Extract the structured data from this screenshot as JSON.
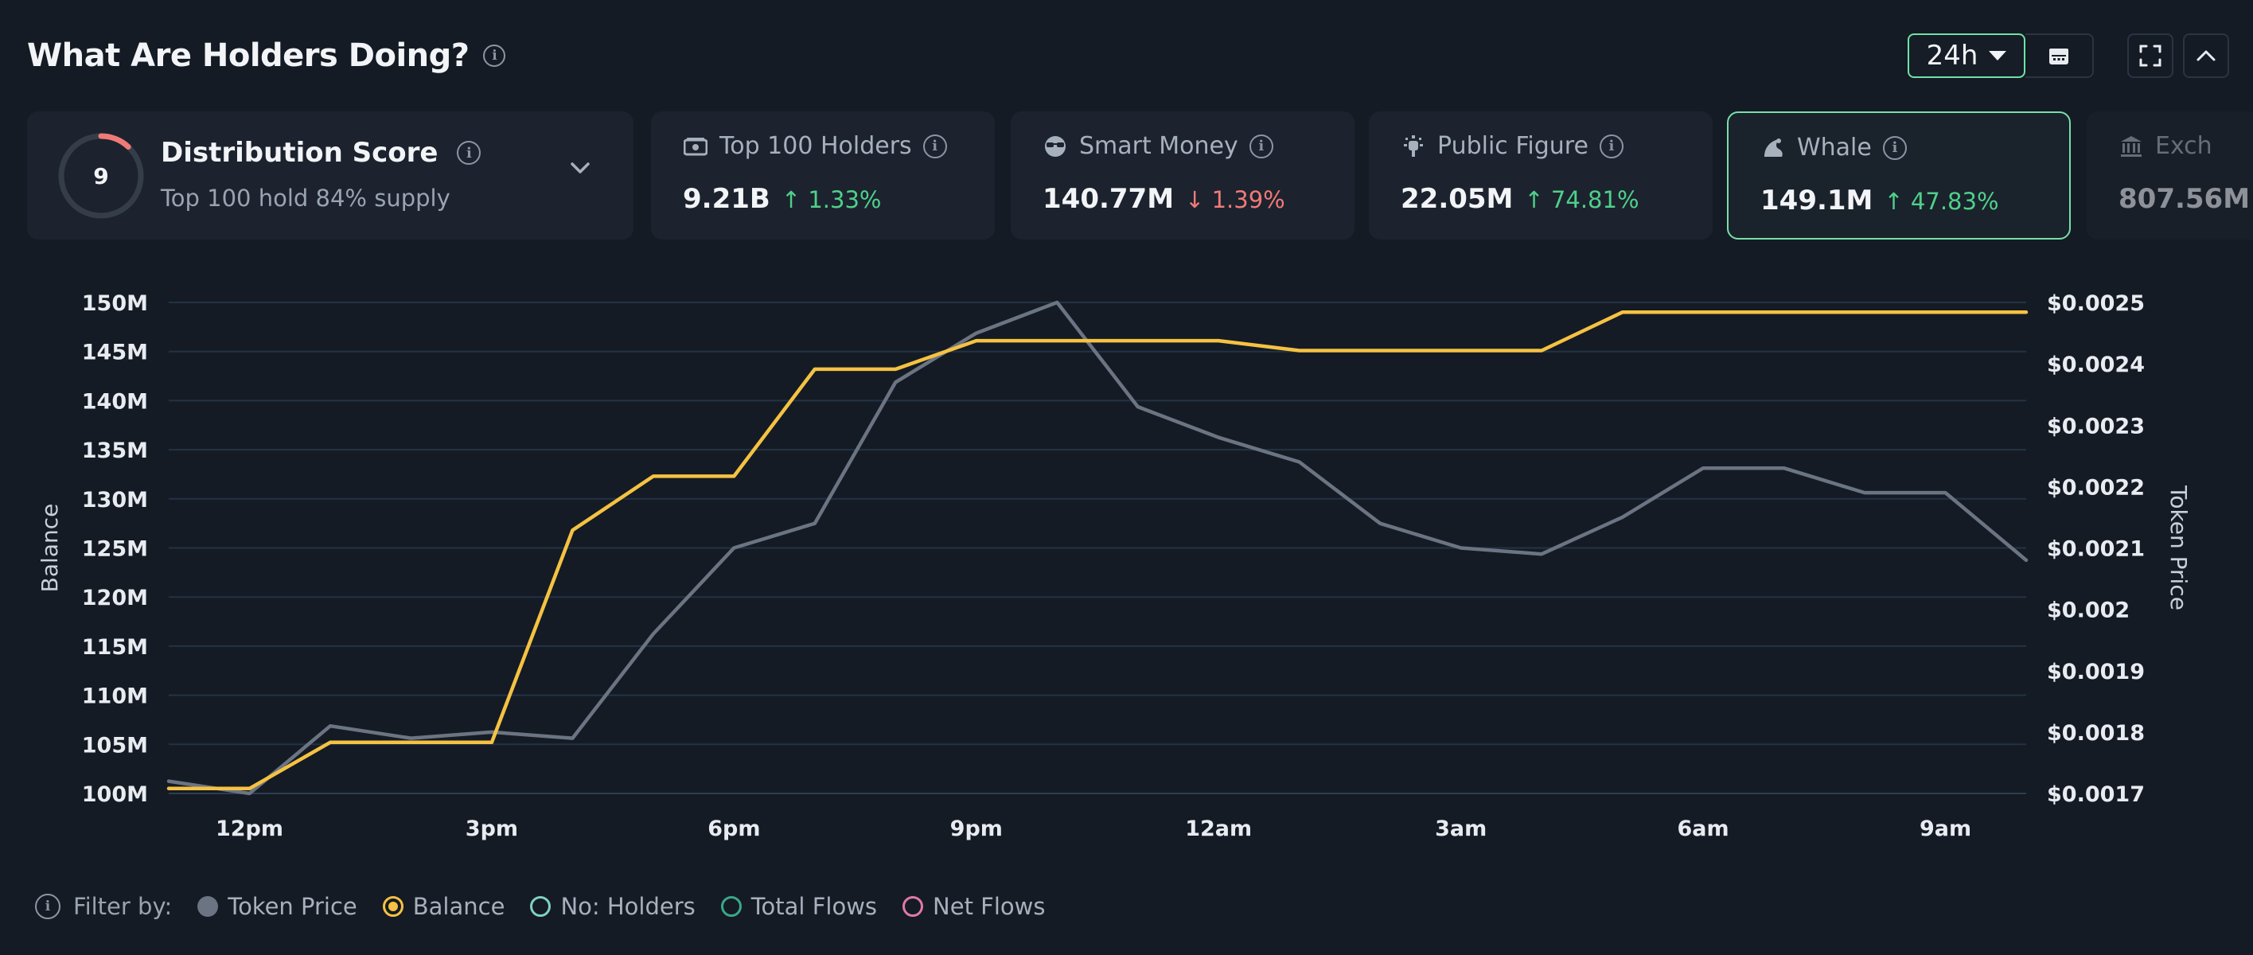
{
  "header": {
    "title": "What Are Holders Doing?"
  },
  "controls": {
    "timeframe": "24h"
  },
  "distribution": {
    "score": "9",
    "title": "Distribution Score",
    "subtitle": "Top 100 hold 84% supply"
  },
  "stats": [
    {
      "label": "Top 100 Holders",
      "value": "9.21B",
      "change": "1.33%",
      "dir": "up",
      "icon": "money-stack-icon"
    },
    {
      "label": "Smart Money",
      "value": "140.77M",
      "change": "1.39%",
      "dir": "down",
      "icon": "sunglasses-icon"
    },
    {
      "label": "Public Figure",
      "value": "22.05M",
      "change": "74.81%",
      "dir": "up",
      "icon": "megaphone-icon"
    },
    {
      "label": "Whale",
      "value": "149.1M",
      "change": "47.83%",
      "dir": "up",
      "icon": "whale-icon"
    },
    {
      "label": "Exch",
      "value": "807.56M",
      "icon": "bank-icon"
    }
  ],
  "chart_data": {
    "type": "line",
    "x_ticks": [
      "12pm",
      "3pm",
      "6pm",
      "9pm",
      "12am",
      "3am",
      "6am",
      "9am"
    ],
    "y_left": {
      "label": "Balance",
      "ticks": [
        "100M",
        "105M",
        "110M",
        "115M",
        "120M",
        "125M",
        "130M",
        "135M",
        "140M",
        "145M",
        "150M"
      ],
      "min": 100,
      "max": 150
    },
    "y_right": {
      "label": "Token Price",
      "ticks": [
        "$0.0017",
        "$0.0018",
        "$0.0019",
        "$0.002",
        "$0.0021",
        "$0.0022",
        "$0.0023",
        "$0.0024",
        "$0.0025"
      ],
      "min": 0.0017,
      "max": 0.0025
    },
    "x": [
      0,
      1,
      2,
      3,
      4,
      5,
      6,
      7,
      8,
      9,
      10,
      11,
      12,
      13,
      14,
      15,
      16,
      17,
      18,
      19,
      20,
      21,
      22,
      23
    ],
    "series": [
      {
        "name": "Balance",
        "color": "#f5c242",
        "axis": "left",
        "values": [
          100.5,
          100.5,
          105.2,
          105.2,
          105.2,
          126.8,
          132.3,
          132.3,
          143.2,
          143.2,
          146.1,
          146.1,
          146.1,
          146.1,
          145.1,
          145.1,
          145.1,
          145.1,
          149.0,
          149.0,
          149.0,
          149.0,
          149.0,
          149.0
        ]
      },
      {
        "name": "Token Price",
        "color": "#6b7482",
        "axis": "right",
        "values": [
          0.00172,
          0.0017,
          0.00181,
          0.00179,
          0.0018,
          0.00179,
          0.00196,
          0.0021,
          0.00214,
          0.00237,
          0.00245,
          0.0025,
          0.00233,
          0.00228,
          0.00224,
          0.00214,
          0.0021,
          0.00209,
          0.00215,
          0.00223,
          0.00223,
          0.00219,
          0.00219,
          0.00208
        ]
      }
    ]
  },
  "filters": {
    "label": "Filter by:",
    "items": [
      {
        "label": "Token Price",
        "color": "#6b7482",
        "style": "filled"
      },
      {
        "label": "Balance",
        "color": "#f5c242",
        "style": "selected"
      },
      {
        "label": "No: Holders",
        "color": "#7fd1c4",
        "style": "outline"
      },
      {
        "label": "Total Flows",
        "color": "#3aa88a",
        "style": "outline"
      },
      {
        "label": "Net Flows",
        "color": "#e07aa8",
        "style": "outline"
      }
    ]
  }
}
